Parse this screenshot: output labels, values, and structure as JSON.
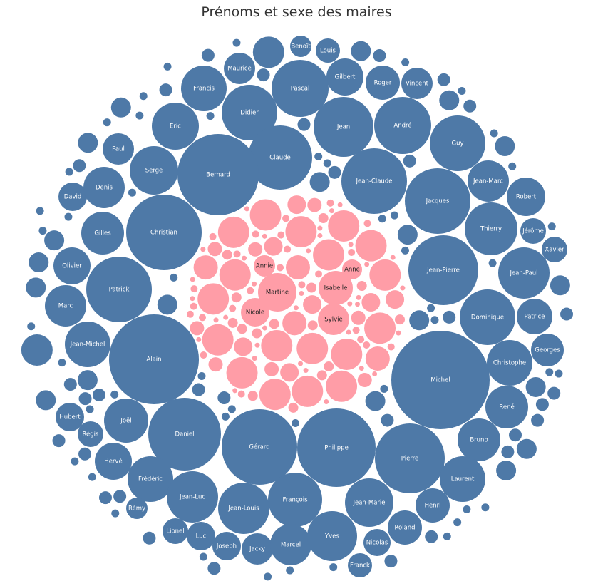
{
  "chart_data": {
    "type": "bubble",
    "title": "Prénoms et sexe des maires",
    "colors": {
      "homme": "#4e79a7",
      "femme": "#ff9da7"
    },
    "series": [
      {
        "key": "homme",
        "labeled": [
          "Benoît",
          "Louis",
          "Maurice",
          "Gilbert",
          "Roger",
          "Vincent",
          "Francis",
          "Pascal",
          "Didier",
          "Jean",
          "André",
          "Eric",
          "Guy",
          "Paul",
          "Claude",
          "Serge",
          "Bernard",
          "Jean-Claude",
          "Jean-Marc",
          "David",
          "Denis",
          "Jacques",
          "Robert",
          "Gilles",
          "Christian",
          "Thierry",
          "Jérôme",
          "Xavier",
          "Olivier",
          "Jean-Pierre",
          "Jean-Paul",
          "Patrick",
          "Marc",
          "Dominique",
          "Patrice",
          "Jean-Michel",
          "Alain",
          "Georges",
          "Christophe",
          "Michel",
          "René",
          "Hubert",
          "Joël",
          "Régis",
          "Daniel",
          "Gérard",
          "Philippe",
          "Bruno",
          "Hervé",
          "Pierre",
          "Frédéric",
          "Laurent",
          "Jean-Luc",
          "François",
          "Jean-Marie",
          "Henri",
          "Rémy",
          "Jean-Louis",
          "Lionel",
          "Luc",
          "Roland",
          "Joseph",
          "Jacky",
          "Marcel",
          "Yves",
          "Nicolas",
          "Franck"
        ]
      },
      {
        "key": "femme",
        "labeled": [
          "Annie",
          "Anne",
          "Martine",
          "Isabelle",
          "Nicole",
          "Sylvie"
        ]
      }
    ]
  }
}
